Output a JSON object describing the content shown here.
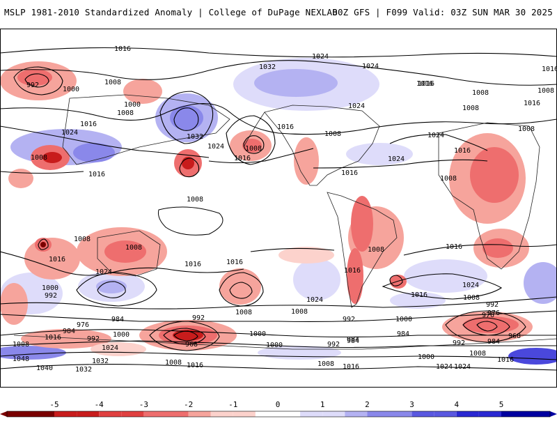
{
  "header": {
    "left_title": "MSLP 1981-2010 Standardized Anomaly | College of DuPage NEXLAB",
    "right_title": "00Z GFS | F099 Valid: 03Z SUN MAR 30 2025"
  },
  "isobar_labels": [
    "1016",
    "1024",
    "1032",
    "1024",
    "1016",
    "1016",
    "1008",
    "1008",
    "992",
    "1000",
    "1008",
    "1000",
    "1008",
    "1016",
    "1024",
    "1032",
    "1024",
    "1016",
    "1008",
    "1016",
    "1008",
    "1024",
    "1016",
    "1016",
    "1008",
    "1016",
    "1024",
    "1008",
    "1024",
    "1008",
    "1008",
    "1016",
    "1008",
    "1016",
    "1016",
    "1024",
    "1008",
    "1016",
    "1000",
    "992",
    "1008",
    "1016",
    "1008",
    "1016",
    "1024",
    "1008",
    "1000",
    "1008",
    "1024",
    "1008",
    "1016",
    "992",
    "1024",
    "1016",
    "976",
    "984",
    "992",
    "1000",
    "992",
    "984",
    "976",
    "984",
    "992",
    "1000",
    "968",
    "984",
    "992",
    "1000",
    "968",
    "984",
    "976",
    "1008",
    "1016",
    "1024",
    "1040",
    "1048",
    "1032",
    "1032",
    "1008",
    "1016",
    "1008",
    "1016",
    "1024",
    "1008",
    "1016",
    "992",
    "984",
    "1000"
  ],
  "colorbar": {
    "ticks": [
      "-5",
      "-4",
      "-3",
      "-2",
      "-1",
      "0",
      "1",
      "2",
      "3",
      "4",
      "5"
    ],
    "colors": [
      "#7a0000",
      "#c81c1c",
      "#e04040",
      "#ee6e6e",
      "#f6a49c",
      "#fcd2cc",
      "#ffffff",
      "#dedcfa",
      "#b4b2f2",
      "#8a88ea",
      "#5a58e0",
      "#2a28d2",
      "#0000a0"
    ]
  },
  "map_colors": {
    "neg_strong": "#c81c1c",
    "neg_mid": "#ee6e6e",
    "neg_light": "#f6a49c",
    "neg_faint": "#fcd2cc",
    "pos_faint": "#dedcfa",
    "pos_light": "#b4b2f2",
    "pos_mid": "#8a88ea",
    "pos_strong": "#4a48dc"
  }
}
